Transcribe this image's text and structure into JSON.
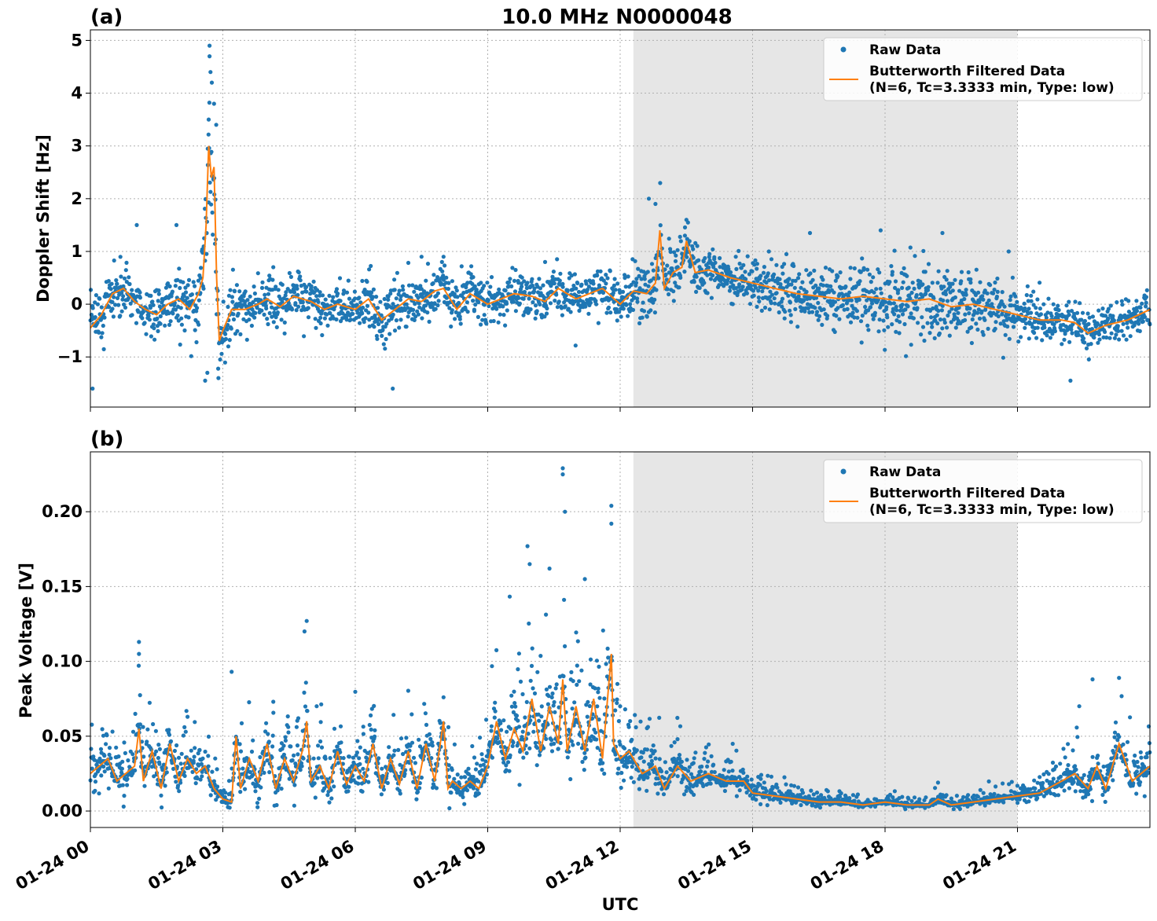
{
  "figure": {
    "title": "10.0 MHz N0000048",
    "xlabel": "UTC",
    "x_tick_labels": [
      "01-24 00",
      "01-24 03",
      "01-24 06",
      "01-24 09",
      "01-24 12",
      "01-24 15",
      "01-24 18",
      "01-24 21"
    ]
  },
  "colors": {
    "raw": "#1f77b4",
    "filtered": "#ff7f0e",
    "shade": "#e6e6e6",
    "grid": "#b0b0b0"
  },
  "chart_data": [
    {
      "type": "scatter",
      "panel_label": "(a)",
      "title": "10.0 MHz N0000048",
      "xlabel": "",
      "ylabel": "Doppler Shift [Hz]",
      "xlim_hours": [
        0,
        24
      ],
      "ylim": [
        -1.95,
        5.2
      ],
      "yticks": [
        -1,
        0,
        1,
        2,
        3,
        4,
        5
      ],
      "ytick_labels": [
        "−1",
        "0",
        "1",
        "2",
        "3",
        "4",
        "5"
      ],
      "grid": true,
      "legend_position": "top-right",
      "legend": [
        "Raw Data",
        "Butterworth Filtered Data",
        "(N=6, Tc=3.3333 min, Type: low)"
      ],
      "shaded_span_hours": [
        12.3,
        21
      ],
      "series": [
        {
          "name": "Raw Data",
          "kind": "scatter",
          "spread_hours": [
            0,
            0.5,
            1,
            1.5,
            2,
            2.5,
            2.7,
            2.9,
            3,
            3.5,
            4,
            5,
            6,
            6.5,
            7,
            8,
            9,
            10,
            11,
            12,
            12.5,
            12.9,
            13,
            13.5,
            14,
            15,
            16,
            17,
            18,
            19,
            20,
            21,
            22,
            23,
            24
          ],
          "spread_values": [
            0.5,
            0.6,
            0.4,
            0.5,
            0.6,
            0.7,
            1.5,
            1.2,
            0.6,
            0.5,
            0.5,
            0.4,
            0.4,
            0.6,
            0.5,
            0.5,
            0.4,
            0.4,
            0.4,
            0.4,
            0.45,
            0.6,
            0.5,
            0.5,
            0.45,
            0.45,
            0.55,
            0.65,
            0.7,
            0.7,
            0.6,
            0.45,
            0.35,
            0.35,
            0.35
          ],
          "outliers": [
            [
              2.7,
              4.9
            ],
            [
              2.7,
              4.7
            ],
            [
              2.72,
              4.4
            ],
            [
              2.75,
              4.2
            ],
            [
              2.8,
              3.8
            ],
            [
              2.68,
              3.5
            ],
            [
              2.85,
              3.4
            ],
            [
              2.6,
              -1.45
            ],
            [
              2.65,
              -1.3
            ],
            [
              2.9,
              -1.4
            ],
            [
              0.05,
              -1.6
            ],
            [
              6.85,
              -1.6
            ],
            [
              1.05,
              1.5
            ],
            [
              1.95,
              1.5
            ],
            [
              12.65,
              2.0
            ],
            [
              12.8,
              1.9
            ],
            [
              13.5,
              1.6
            ],
            [
              16.3,
              1.35
            ],
            [
              17.9,
              1.4
            ],
            [
              19.3,
              1.35
            ],
            [
              20.8,
              1.0
            ],
            [
              22.2,
              -1.45
            ],
            [
              7.5,
              0.9
            ],
            [
              8.0,
              0.9
            ],
            [
              10.3,
              0.8
            ]
          ]
        },
        {
          "name": "Butterworth Filtered Data",
          "kind": "line",
          "x_hours": [
            0,
            0.25,
            0.5,
            0.75,
            1,
            1.25,
            1.5,
            1.75,
            2,
            2.25,
            2.45,
            2.55,
            2.62,
            2.68,
            2.74,
            2.8,
            2.86,
            2.92,
            3,
            3.2,
            3.5,
            3.8,
            4,
            4.3,
            4.6,
            5,
            5.3,
            5.6,
            6,
            6.3,
            6.6,
            6.9,
            7.2,
            7.5,
            7.8,
            8,
            8.3,
            8.6,
            9,
            9.3,
            9.6,
            10,
            10.3,
            10.6,
            11,
            11.3,
            11.6,
            12,
            12.3,
            12.6,
            12.8,
            12.9,
            13,
            13.2,
            13.4,
            13.5,
            13.7,
            14,
            14.5,
            15,
            15.5,
            16,
            16.5,
            17,
            17.5,
            18,
            18.5,
            19,
            19.5,
            20,
            20.5,
            21,
            21.5,
            22,
            22.3,
            22.6,
            23,
            23.5,
            24
          ],
          "values": [
            -0.45,
            -0.2,
            0.2,
            0.3,
            0.05,
            -0.1,
            -0.2,
            0.0,
            0.1,
            -0.1,
            0.2,
            0.5,
            1.5,
            3.0,
            2.4,
            2.6,
            0.5,
            -0.7,
            -0.5,
            -0.1,
            -0.1,
            0.0,
            0.1,
            -0.05,
            0.15,
            0.05,
            -0.1,
            0.0,
            -0.1,
            0.1,
            -0.3,
            -0.1,
            0.1,
            0.05,
            0.25,
            0.3,
            -0.1,
            0.2,
            0.0,
            0.1,
            0.2,
            0.15,
            0.05,
            0.3,
            0.1,
            0.2,
            0.3,
            0.0,
            0.25,
            0.2,
            0.4,
            1.4,
            0.3,
            0.6,
            0.7,
            1.2,
            0.6,
            0.65,
            0.5,
            0.4,
            0.3,
            0.2,
            0.15,
            0.1,
            0.15,
            0.1,
            0.05,
            0.1,
            -0.05,
            0.0,
            -0.1,
            -0.2,
            -0.3,
            -0.3,
            -0.35,
            -0.55,
            -0.4,
            -0.3,
            -0.1
          ]
        }
      ]
    },
    {
      "type": "scatter",
      "panel_label": "(b)",
      "title": "",
      "xlabel": "UTC",
      "ylabel": "Peak Voltage [V]",
      "xlim_hours": [
        0,
        24
      ],
      "ylim": [
        -0.011,
        0.24
      ],
      "yticks": [
        0,
        0.05,
        0.1,
        0.15,
        0.2
      ],
      "ytick_labels": [
        "0.00",
        "0.05",
        "0.10",
        "0.15",
        "0.20"
      ],
      "grid": true,
      "legend_position": "top-right",
      "legend": [
        "Raw Data",
        "Butterworth Filtered Data",
        "(N=6, Tc=3.3333 min, Type: low)"
      ],
      "shaded_span_hours": [
        12.3,
        21
      ],
      "series": [
        {
          "name": "Raw Data",
          "kind": "scatter",
          "spread_hours": [
            0,
            1,
            2,
            2.5,
            3,
            3.5,
            4,
            4.5,
            5,
            5.5,
            6,
            7,
            8,
            8.5,
            9,
            9.5,
            10,
            10.5,
            11,
            11.5,
            12,
            12.5,
            13,
            14,
            15,
            16,
            17,
            18,
            19,
            20,
            21,
            22,
            23,
            24
          ],
          "spread_values": [
            0.04,
            0.05,
            0.045,
            0.035,
            0.015,
            0.04,
            0.05,
            0.055,
            0.045,
            0.04,
            0.035,
            0.035,
            0.035,
            0.03,
            0.045,
            0.08,
            0.085,
            0.085,
            0.085,
            0.085,
            0.07,
            0.04,
            0.035,
            0.025,
            0.02,
            0.012,
            0.008,
            0.006,
            0.006,
            0.008,
            0.012,
            0.025,
            0.035,
            0.04
          ],
          "outliers": [
            [
              1.1,
              0.113
            ],
            [
              1.1,
              0.105
            ],
            [
              4.9,
              0.127
            ],
            [
              4.85,
              0.12
            ],
            [
              10.7,
              0.229
            ],
            [
              10.7,
              0.225
            ],
            [
              10.75,
              0.2
            ],
            [
              11.8,
              0.204
            ],
            [
              11.8,
              0.192
            ],
            [
              9.9,
              0.177
            ],
            [
              9.95,
              0.165
            ],
            [
              11.2,
              0.155
            ],
            [
              10.4,
              0.162
            ],
            [
              2.2,
              0.063
            ],
            [
              3.2,
              0.093
            ],
            [
              8.0,
              0.076
            ],
            [
              22.7,
              0.088
            ],
            [
              23.3,
              0.089
            ],
            [
              12.0,
              0.07
            ],
            [
              13.3,
              0.048
            ],
            [
              19.2,
              0.019
            ],
            [
              22.4,
              0.07
            ]
          ]
        },
        {
          "name": "Butterworth Filtered Data",
          "kind": "line",
          "x_hours": [
            0,
            0.2,
            0.4,
            0.6,
            0.8,
            1,
            1.1,
            1.2,
            1.4,
            1.6,
            1.8,
            2,
            2.2,
            2.4,
            2.6,
            2.8,
            3,
            3.2,
            3.3,
            3.4,
            3.6,
            3.8,
            4,
            4.2,
            4.4,
            4.6,
            4.8,
            4.9,
            5,
            5.2,
            5.4,
            5.6,
            5.8,
            6,
            6.2,
            6.4,
            6.6,
            6.8,
            7,
            7.2,
            7.4,
            7.6,
            7.8,
            8,
            8.1,
            8.2,
            8.4,
            8.6,
            8.8,
            9,
            9.2,
            9.4,
            9.6,
            9.8,
            10,
            10.2,
            10.4,
            10.6,
            10.7,
            10.8,
            11,
            11.2,
            11.4,
            11.6,
            11.8,
            11.85,
            12,
            12.2,
            12.5,
            12.8,
            13,
            13.3,
            13.6,
            14,
            14.4,
            14.8,
            15,
            15.5,
            16,
            16.5,
            17,
            17.5,
            18,
            18.5,
            19,
            19.2,
            19.5,
            20,
            20.5,
            21,
            21.5,
            22,
            22.3,
            22.6,
            22.8,
            23,
            23.3,
            23.6,
            24
          ],
          "values": [
            0.025,
            0.03,
            0.035,
            0.02,
            0.025,
            0.03,
            0.055,
            0.02,
            0.04,
            0.015,
            0.045,
            0.02,
            0.035,
            0.025,
            0.03,
            0.015,
            0.008,
            0.006,
            0.05,
            0.015,
            0.035,
            0.02,
            0.045,
            0.015,
            0.035,
            0.02,
            0.04,
            0.06,
            0.02,
            0.03,
            0.015,
            0.04,
            0.018,
            0.03,
            0.02,
            0.045,
            0.015,
            0.035,
            0.018,
            0.04,
            0.015,
            0.045,
            0.02,
            0.06,
            0.015,
            0.02,
            0.015,
            0.02,
            0.015,
            0.03,
            0.06,
            0.035,
            0.055,
            0.04,
            0.075,
            0.04,
            0.07,
            0.045,
            0.088,
            0.04,
            0.07,
            0.04,
            0.075,
            0.035,
            0.105,
            0.045,
            0.035,
            0.04,
            0.025,
            0.03,
            0.015,
            0.03,
            0.02,
            0.025,
            0.02,
            0.02,
            0.012,
            0.01,
            0.008,
            0.006,
            0.006,
            0.004,
            0.006,
            0.004,
            0.004,
            0.008,
            0.004,
            0.006,
            0.008,
            0.01,
            0.012,
            0.02,
            0.025,
            0.015,
            0.03,
            0.015,
            0.045,
            0.02,
            0.03
          ]
        }
      ]
    }
  ]
}
